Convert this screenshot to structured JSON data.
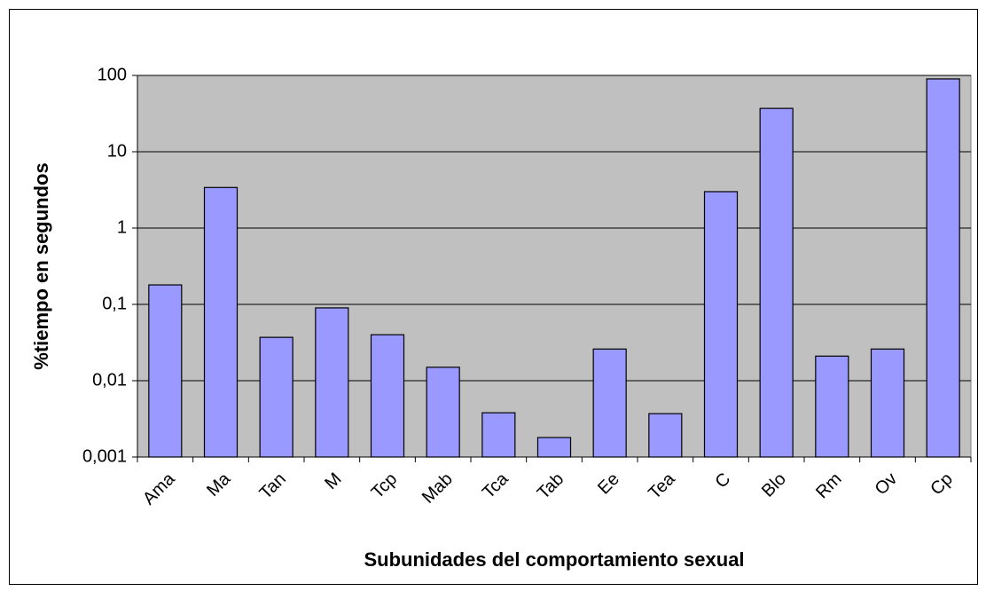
{
  "chart_data": {
    "type": "bar",
    "x_label": "Subunidades del comportamiento sexual",
    "y_label": "%tiempo en segundos",
    "categories": [
      "Ama",
      "Ma",
      "Tan",
      "M",
      "Tcp",
      "Mab",
      "Tca",
      "Tab",
      "Ee",
      "Tea",
      "C",
      "Blo",
      "Rm",
      "Ov",
      "Cp"
    ],
    "values": [
      0.18,
      3.4,
      0.037,
      0.09,
      0.04,
      0.015,
      0.0038,
      0.0018,
      0.026,
      0.0037,
      3.0,
      37,
      0.021,
      0.026,
      90
    ],
    "color": "#9999ff",
    "log": true,
    "grid": true,
    "ylim": [
      0.001,
      100
    ],
    "yticks": [
      {
        "value": 0.001,
        "label": "0,001"
      },
      {
        "value": 0.01,
        "label": "0,01"
      },
      {
        "value": 0.1,
        "label": "0,1"
      },
      1,
      10,
      100
    ]
  }
}
